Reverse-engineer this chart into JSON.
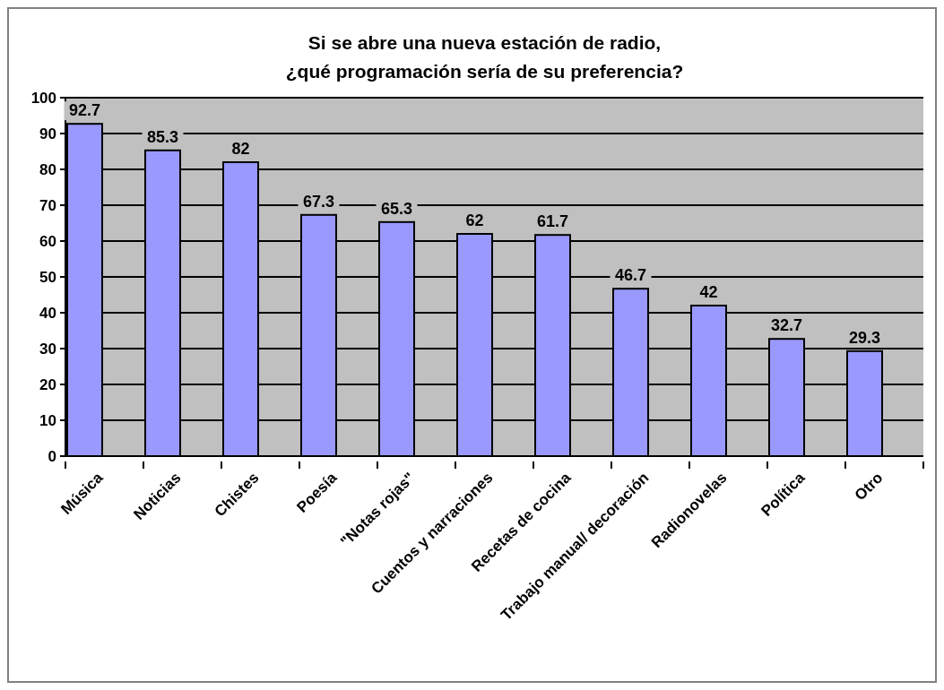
{
  "chart_data": {
    "type": "bar",
    "title": "Si se abre una nueva estación de radio,\n¿qué programación sería de su preferencia?",
    "categories": [
      "Música",
      "Noticias",
      "Chistes",
      "Poesía",
      "\"Notas rojas\"",
      "Cuentos y narraciones",
      "Recetas de cocina",
      "Trabajo manual/ decoración",
      "Radionovelas",
      "Política",
      "Otro"
    ],
    "values": [
      92.7,
      85.3,
      82,
      67.3,
      65.3,
      62,
      61.7,
      46.7,
      42,
      32.7,
      29.3
    ],
    "color": "#9999ff",
    "ylim": [
      0,
      100
    ],
    "yticks": [
      0,
      10,
      20,
      30,
      40,
      50,
      60,
      70,
      80,
      90,
      100
    ],
    "grid": "y",
    "data_labels": true
  }
}
